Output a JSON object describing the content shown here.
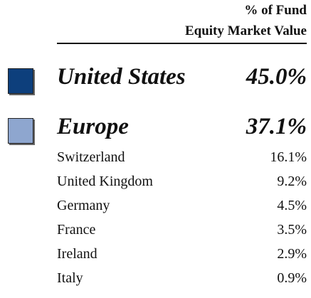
{
  "header": {
    "line1": "% of Fund",
    "line2": "Equity Market Value"
  },
  "regions": [
    {
      "name": "United States",
      "value": "45.0%",
      "color": "#0d3f7c",
      "countries": []
    },
    {
      "name": "Europe",
      "value": "37.1%",
      "color": "#8ea6cf",
      "countries": [
        {
          "name": "Switzerland",
          "value": "16.1%"
        },
        {
          "name": "United Kingdom",
          "value": "9.2%"
        },
        {
          "name": "Germany",
          "value": "4.5%"
        },
        {
          "name": "France",
          "value": "3.5%"
        },
        {
          "name": "Ireland",
          "value": "2.9%"
        },
        {
          "name": "Italy",
          "value": "0.9%"
        }
      ]
    }
  ]
}
